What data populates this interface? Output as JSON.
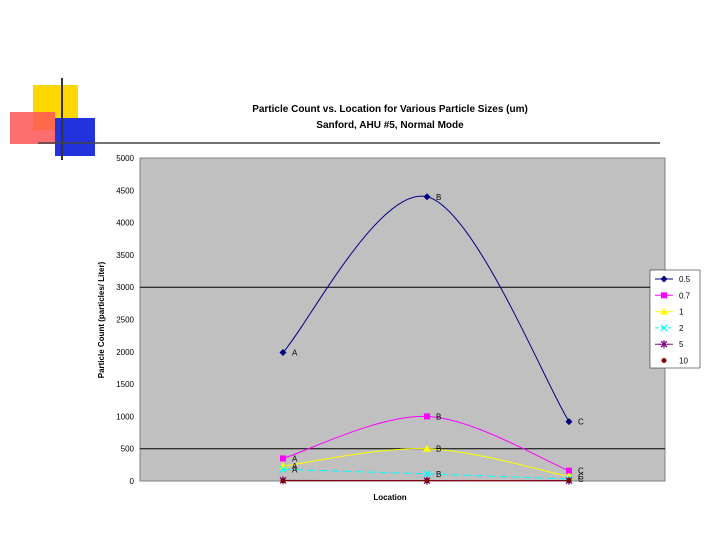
{
  "chart_data": {
    "type": "line",
    "title": "Particle Count vs. Location for Various Particle Sizes (um)",
    "subtitle": "Sanford, AHU #5, Normal Mode",
    "xlabel": "Location",
    "ylabel": "Particle Count (particles/ Liter)",
    "ylim": [
      0,
      5000
    ],
    "yticks": [
      0,
      500,
      1000,
      1500,
      2000,
      2500,
      3000,
      3500,
      4000,
      4500,
      5000
    ],
    "grid": "horizontal at 500 and 3000",
    "legend": "right",
    "categories": [
      "A",
      "B",
      "C"
    ],
    "series": [
      {
        "name": "0.5",
        "values": [
          1990,
          4400,
          920
        ],
        "color": "#000080",
        "marker": "diamond"
      },
      {
        "name": "0.7",
        "values": [
          350,
          1000,
          160
        ],
        "color": "#ff00ff",
        "marker": "square"
      },
      {
        "name": "1",
        "values": [
          230,
          500,
          70
        ],
        "color": "#ffff00",
        "marker": "triangle"
      },
      {
        "name": "2",
        "values": [
          180,
          110,
          30
        ],
        "color": "#00ffff",
        "marker": "x"
      },
      {
        "name": "5",
        "values": [
          10,
          5,
          5
        ],
        "color": "#800080",
        "marker": "star"
      },
      {
        "name": "10",
        "values": [
          5,
          5,
          5
        ],
        "color": "#800000",
        "marker": "circle"
      }
    ]
  }
}
